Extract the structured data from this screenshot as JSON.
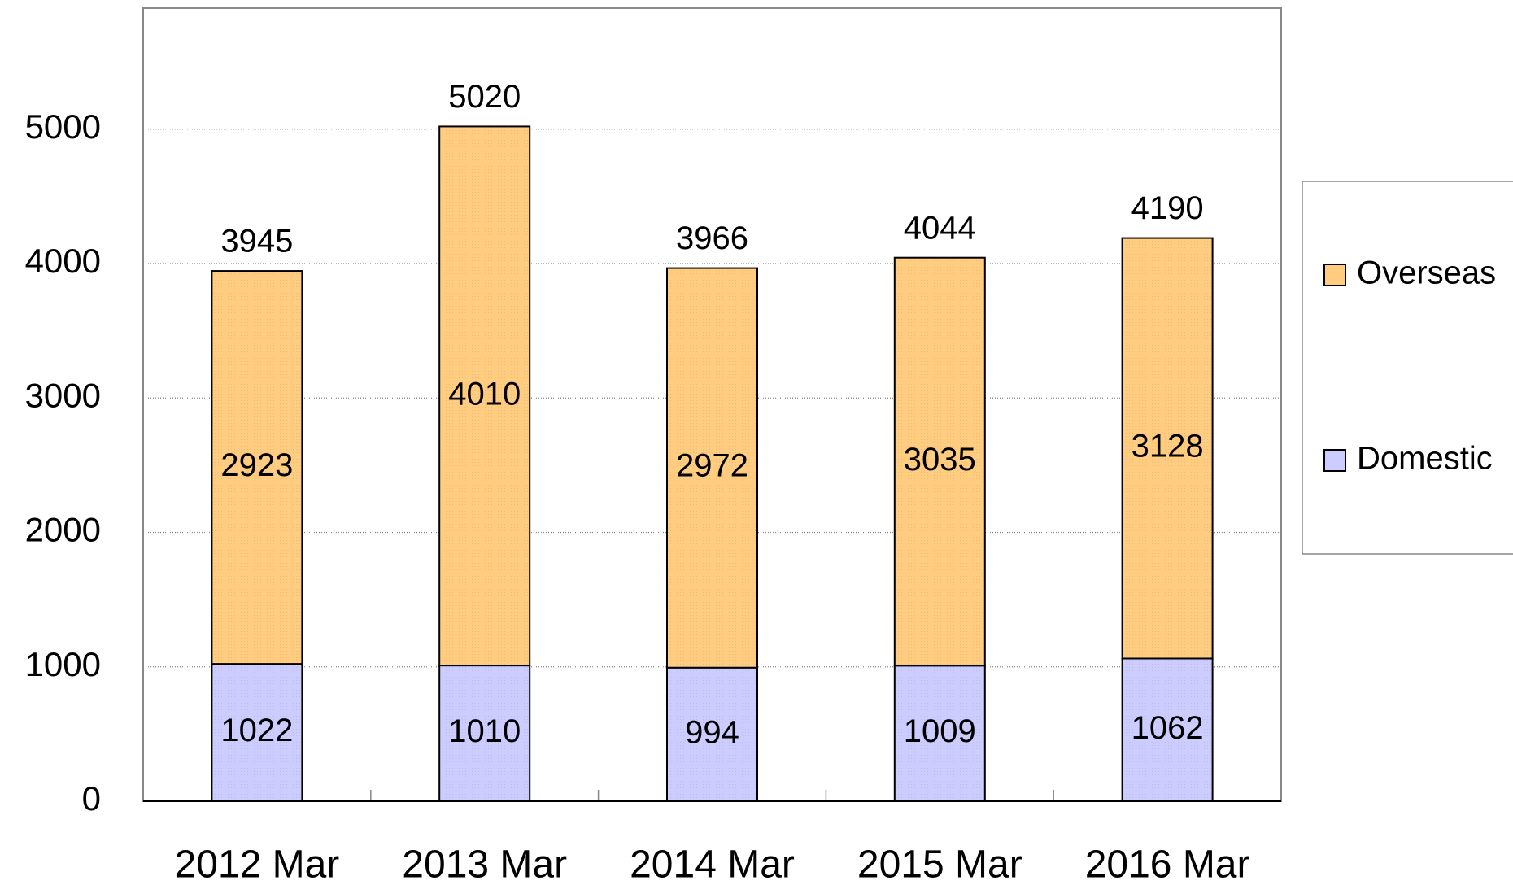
{
  "chart_data": {
    "type": "stacked_bar",
    "categories": [
      "2012 Mar",
      "2013 Mar",
      "2014 Mar",
      "2015 Mar",
      "2016 Mar"
    ],
    "series": [
      {
        "name": "Domestic",
        "color": "#ccccff",
        "values": [
          1022,
          1010,
          994,
          1009,
          1062
        ]
      },
      {
        "name": "Overseas",
        "color": "#ffcc80",
        "values": [
          2923,
          4010,
          2972,
          3035,
          3128
        ]
      }
    ],
    "totals": [
      3945,
      5020,
      3966,
      4044,
      4190
    ],
    "ylim": [
      0,
      5900
    ],
    "yticks": [
      0,
      1000,
      2000,
      3000,
      4000,
      5000
    ],
    "grid": true,
    "legend": "right"
  }
}
